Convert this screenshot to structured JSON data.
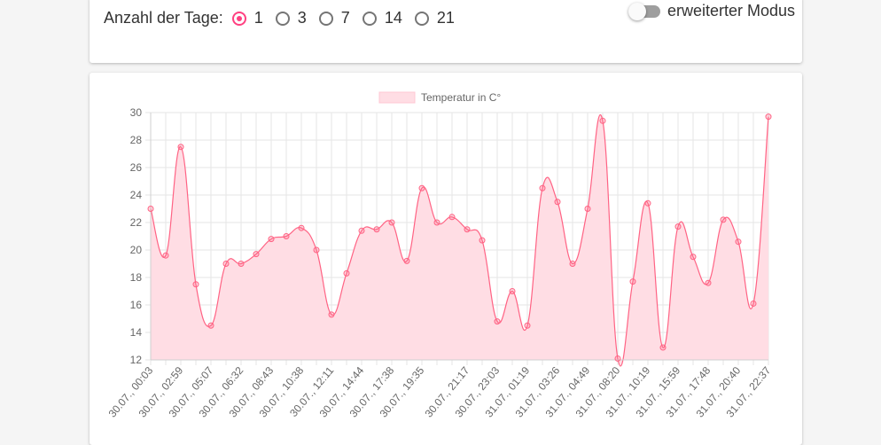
{
  "controls": {
    "days_label": "Anzahl der Tage:",
    "options": [
      "1",
      "3",
      "7",
      "14",
      "21"
    ],
    "selected_index": 0,
    "mode_label": "erweiterter Modus",
    "mode_on": false
  },
  "colors": {
    "accent": "#ff4081",
    "line": "#ff6384",
    "fill": "#ffdde4"
  },
  "chart_data": {
    "type": "area",
    "legend": "Temperatur in C°",
    "legend_position": "top",
    "grid": true,
    "ylim": [
      12,
      30
    ],
    "yticks": [
      12,
      14,
      16,
      18,
      20,
      22,
      24,
      26,
      28,
      30
    ],
    "xticks": [
      "30.07., 00:03",
      "30.07., 02:59",
      "30.07., 05:07",
      "30.07., 06:32",
      "30.07., 08:43",
      "30.07., 10:38",
      "30.07., 12:11",
      "30.07., 14:44",
      "30.07., 17:38",
      "30.07., 19:35",
      "30.07., 21:17",
      "30.07., 23:03",
      "31.07., 01:19",
      "31.07., 03:26",
      "31.07., 04:49",
      "31.07., 08:20",
      "31.07., 10:19",
      "31.07., 15:59",
      "31.07., 17:48",
      "31.07., 20:40",
      "31.07., 22:37"
    ],
    "series": [
      {
        "name": "Temperatur in C°",
        "values": [
          23.0,
          19.6,
          27.5,
          17.5,
          14.5,
          19.0,
          19.0,
          19.7,
          20.8,
          21.0,
          21.6,
          20.0,
          15.3,
          18.3,
          21.4,
          21.5,
          22.0,
          19.2,
          24.5,
          22.0,
          22.4,
          21.5,
          20.7,
          14.8,
          17.0,
          14.5,
          24.5,
          23.5,
          19.0,
          23.0,
          29.4,
          12.1,
          17.7,
          23.4,
          12.9,
          21.7,
          19.5,
          17.6,
          22.2,
          20.6,
          16.1,
          29.7
        ]
      }
    ]
  }
}
